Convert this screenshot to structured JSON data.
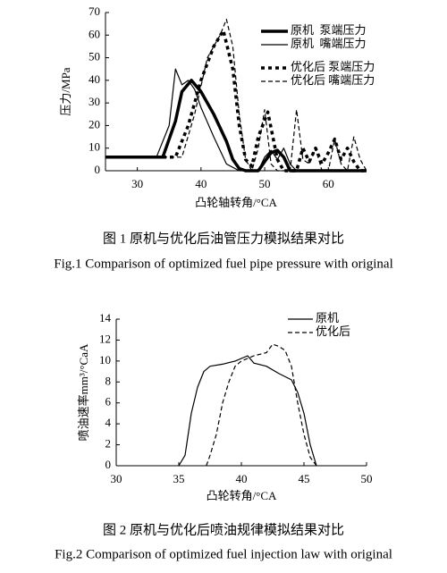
{
  "chart_data": [
    {
      "type": "line",
      "caption_zh": "图 1   原机与优化后油管压力模拟结果对比",
      "caption_en": "Fig.1 Comparison of optimized fuel pipe pressure with original",
      "x_label": "凸轮轴转角/°CA",
      "y_label": "压力/MPa",
      "xlim": [
        25,
        66
      ],
      "xticks": [
        30,
        40,
        50,
        60
      ],
      "ylim": [
        0,
        70
      ],
      "yticks": [
        0,
        10,
        20,
        30,
        40,
        50,
        60,
        70
      ],
      "series": [
        {
          "name": "原机  泵端压力",
          "color": "#000000",
          "dash": "solid",
          "line_width": "thick",
          "x": [
            25,
            34,
            36,
            37,
            38.5,
            40,
            42,
            44,
            45,
            46,
            47,
            49,
            50,
            51,
            52,
            53,
            54,
            66
          ],
          "values": [
            6,
            6,
            22,
            35,
            40,
            35,
            25,
            13,
            5,
            1,
            0,
            0,
            4,
            8,
            9,
            6,
            0,
            0
          ]
        },
        {
          "name": "原机  嘴端压力",
          "color": "#000000",
          "dash": "solid",
          "line_width": "thin",
          "x": [
            25,
            33,
            35,
            36,
            37,
            38,
            39,
            40,
            42,
            44,
            46,
            49,
            50,
            51,
            52,
            53,
            54,
            55,
            66
          ],
          "values": [
            6,
            6,
            20,
            45,
            38,
            40,
            36,
            28,
            15,
            3,
            0,
            0,
            6,
            9,
            5,
            10,
            3,
            0,
            0
          ]
        },
        {
          "name": "优化后 泵端压力",
          "color": "#000000",
          "dash": "dotted",
          "line_width": "thick",
          "x": [
            25,
            36,
            38,
            40,
            42,
            43.5,
            45,
            46,
            47,
            48,
            49,
            50.5,
            52,
            53,
            55,
            56,
            57,
            58,
            59,
            60,
            61,
            62,
            63,
            64,
            65,
            66
          ],
          "values": [
            6,
            6,
            20,
            40,
            55,
            62,
            45,
            20,
            5,
            2,
            15,
            26,
            5,
            0,
            0,
            10,
            4,
            10,
            3,
            8,
            14,
            5,
            10,
            4,
            0,
            0
          ]
        },
        {
          "name": "优化后 嘴端压力",
          "color": "#000000",
          "dash": "dashed",
          "line_width": "thin",
          "x": [
            25,
            37,
            39,
            41,
            43,
            44,
            45,
            46,
            47,
            48,
            49,
            50,
            51,
            52,
            54,
            55,
            56,
            57,
            58,
            59,
            60,
            61,
            62,
            63,
            64,
            65,
            66
          ],
          "values": [
            6,
            6,
            25,
            50,
            60,
            67,
            55,
            25,
            5,
            0,
            10,
            27,
            3,
            0,
            0,
            27,
            5,
            3,
            10,
            0,
            0,
            14,
            3,
            0,
            15,
            5,
            0
          ]
        }
      ]
    },
    {
      "type": "line",
      "caption_zh": "图 2   原机与优化后喷油规律模拟结果对比",
      "caption_en": "Fig.2 Comparison of optimized fuel injection law with original",
      "x_label": "凸轮转角/°CA",
      "y_label": "喷油速率mm³/°CaA",
      "xlim": [
        30,
        50
      ],
      "xticks": [
        30,
        35,
        40,
        45,
        50
      ],
      "ylim": [
        0,
        14
      ],
      "yticks": [
        0,
        2,
        4,
        6,
        8,
        10,
        12,
        14
      ],
      "series": [
        {
          "name": "原机",
          "color": "#000000",
          "dash": "solid",
          "line_width": "thin",
          "x": [
            35,
            35.5,
            36,
            36.5,
            37,
            37.5,
            38.5,
            39.5,
            40.5,
            41,
            42,
            43,
            44,
            44.5,
            45,
            45.5,
            46
          ],
          "values": [
            0,
            1,
            5,
            7.5,
            9,
            9.5,
            9.7,
            10,
            10.5,
            9.8,
            9.5,
            8.8,
            8.2,
            7,
            5,
            2,
            0
          ]
        },
        {
          "name": "优化后",
          "color": "#000000",
          "dash": "dashed",
          "line_width": "thin",
          "x": [
            37.2,
            37.5,
            38,
            38.5,
            39,
            39.5,
            40,
            41,
            42,
            42.5,
            43,
            43.5,
            44,
            44.5,
            45,
            45.5,
            46
          ],
          "values": [
            0,
            1,
            3,
            6,
            8,
            9.5,
            10,
            10.5,
            10.8,
            11.6,
            11.4,
            11,
            9.5,
            6,
            3,
            0.8,
            0
          ]
        }
      ]
    }
  ]
}
